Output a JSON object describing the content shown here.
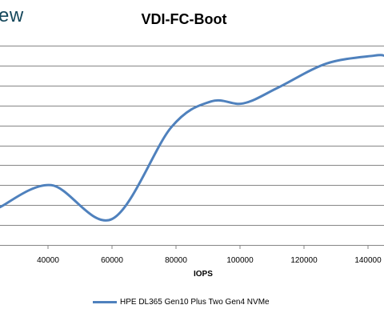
{
  "brand_text": "ew",
  "colors": {
    "series": "#4f81bd",
    "grid": "#868686",
    "axis": "#868686",
    "brand": "#16485c"
  },
  "chart_data": {
    "type": "line",
    "title": "VDI-FC-Boot",
    "xlabel": "IOPS",
    "ylabel": "",
    "xlim": [
      25000,
      145000
    ],
    "xticks": [
      40000,
      60000,
      80000,
      100000,
      120000,
      140000
    ],
    "xtick_labels": [
      "40000",
      "60000",
      "80000",
      "100000",
      "120000",
      "140000"
    ],
    "grid": true,
    "legend_position": "bottom",
    "series": [
      {
        "name": "HPE DL365 Gen10 Plus Two Gen4 NVMe",
        "x": [
          25000,
          41000,
          60000,
          78500,
          91000,
          101000,
          112000,
          127000,
          142000,
          145000
        ],
        "y": [
          0.19,
          0.3,
          0.13,
          0.59,
          0.72,
          0.71,
          0.79,
          0.91,
          0.95,
          0.95
        ]
      }
    ]
  }
}
